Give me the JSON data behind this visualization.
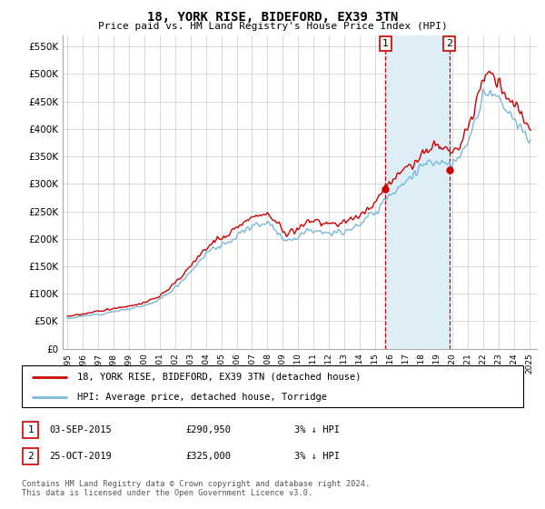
{
  "title": "18, YORK RISE, BIDEFORD, EX39 3TN",
  "subtitle": "Price paid vs. HM Land Registry's House Price Index (HPI)",
  "hpi_color": "#7ab8d9",
  "price_color": "#cc0000",
  "highlight_color": "#ddeef7",
  "marker_color": "#cc0000",
  "ylim": [
    0,
    570000
  ],
  "yticks": [
    0,
    50000,
    100000,
    150000,
    200000,
    250000,
    300000,
    350000,
    400000,
    450000,
    500000,
    550000
  ],
  "ytick_labels": [
    "£0",
    "£50K",
    "£100K",
    "£150K",
    "£200K",
    "£250K",
    "£300K",
    "£350K",
    "£400K",
    "£450K",
    "£500K",
    "£550K"
  ],
  "xmin": 1994.7,
  "xmax": 2025.5,
  "purchase1_date": 2015.67,
  "purchase1_price": 290950,
  "purchase2_date": 2019.82,
  "purchase2_price": 325000,
  "legend_line1": "18, YORK RISE, BIDEFORD, EX39 3TN (detached house)",
  "legend_line2": "HPI: Average price, detached house, Torridge",
  "table_row1": [
    "1",
    "03-SEP-2015",
    "£290,950",
    "3% ↓ HPI"
  ],
  "table_row2": [
    "2",
    "25-OCT-2019",
    "£325,000",
    "3% ↓ HPI"
  ],
  "footer": "Contains HM Land Registry data © Crown copyright and database right 2024.\nThis data is licensed under the Open Government Licence v3.0.",
  "grid_color": "#cccccc",
  "hpi_anchors_dates": [
    1995.0,
    1995.5,
    1996.0,
    1996.5,
    1997.0,
    1997.5,
    1998.0,
    1998.5,
    1999.0,
    1999.5,
    2000.0,
    2000.5,
    2001.0,
    2001.5,
    2002.0,
    2002.5,
    2003.0,
    2003.5,
    2004.0,
    2004.5,
    2005.0,
    2005.5,
    2006.0,
    2006.5,
    2007.0,
    2007.5,
    2008.0,
    2008.5,
    2009.0,
    2009.5,
    2010.0,
    2010.5,
    2011.0,
    2011.5,
    2012.0,
    2012.5,
    2013.0,
    2013.5,
    2014.0,
    2014.5,
    2015.0,
    2015.5,
    2016.0,
    2016.5,
    2017.0,
    2017.5,
    2018.0,
    2018.5,
    2019.0,
    2019.5,
    2020.0,
    2020.5,
    2021.0,
    2021.5,
    2022.0,
    2022.5,
    2023.0,
    2023.5,
    2024.0,
    2024.5,
    2025.0
  ],
  "hpi_anchors_vals": [
    55000,
    57000,
    59000,
    61000,
    63000,
    65000,
    68000,
    70000,
    72000,
    75000,
    78000,
    83000,
    90000,
    100000,
    112000,
    125000,
    140000,
    158000,
    172000,
    182000,
    188000,
    195000,
    205000,
    215000,
    222000,
    228000,
    230000,
    220000,
    200000,
    198000,
    205000,
    215000,
    218000,
    215000,
    210000,
    210000,
    215000,
    220000,
    228000,
    238000,
    248000,
    268000,
    282000,
    295000,
    305000,
    318000,
    330000,
    340000,
    342000,
    338000,
    335000,
    345000,
    375000,
    415000,
    455000,
    468000,
    455000,
    430000,
    415000,
    400000,
    378000
  ],
  "noise_seed": 12,
  "noise_scale": 0.018
}
